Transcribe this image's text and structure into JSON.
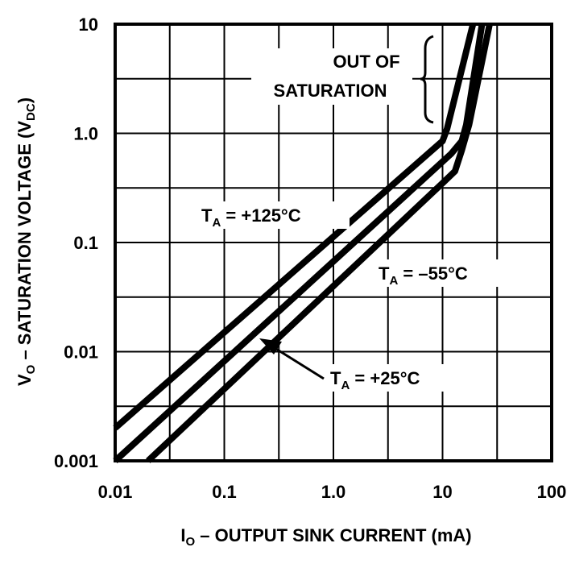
{
  "chart_data": {
    "type": "line",
    "scale": "log-log",
    "xlabel": {
      "main": "I",
      "sub": "O",
      "rest": " – OUTPUT SINK CURRENT (mA)"
    },
    "ylabel": {
      "main": "V",
      "sub": "O",
      "mid": " – SATURATION VOLTAGE (V",
      "sub2": "DC",
      "end": ")"
    },
    "xlim": [
      0.01,
      100
    ],
    "ylim": [
      0.001,
      10
    ],
    "grid": true,
    "x_ticks": [
      "0.01",
      "0.1",
      "1.0",
      "10",
      "100"
    ],
    "y_ticks": [
      "0.001",
      "0.01",
      "0.1",
      "1.0",
      "10"
    ],
    "series": [
      {
        "name": "+125°C",
        "label_main": "T",
        "label_sub": "A",
        "label_rest": " = +125°C",
        "points": [
          [
            0.01,
            0.002
          ],
          [
            10,
            0.85
          ],
          [
            11,
            1.1
          ],
          [
            19,
            10
          ]
        ]
      },
      {
        "name": "+25°C",
        "label_main": "T",
        "label_sub": "A",
        "label_rest": " = +25°C",
        "points": [
          [
            0.01,
            0.001
          ],
          [
            12,
            0.65
          ],
          [
            15,
            0.85
          ],
          [
            16.5,
            1.2
          ],
          [
            23,
            10
          ]
        ]
      },
      {
        "name": "-55°C",
        "label_main": "T",
        "label_sub": "A",
        "label_rest": " = –55°C",
        "points": [
          [
            0.02,
            0.001
          ],
          [
            10,
            0.35
          ],
          [
            13,
            0.45
          ],
          [
            15,
            0.7
          ],
          [
            17.5,
            1.2
          ],
          [
            27,
            10
          ]
        ]
      }
    ],
    "annotation": {
      "line1": "OUT OF",
      "line2": "SATURATION"
    }
  }
}
